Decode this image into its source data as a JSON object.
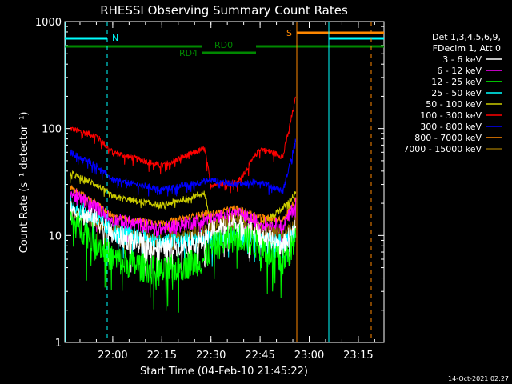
{
  "chart_data": {
    "type": "line",
    "title": "RHESSI Observing Summary Count Rates",
    "ylabel": "Count Rate (s⁻¹ detector⁻¹)",
    "xlabel": "Start Time (04-Feb-10 21:45:22)",
    "timestamp": "14-Oct-2021 02:27",
    "y_scale": "log",
    "ylim": [
      1,
      1000
    ],
    "y_ticks": [
      {
        "value": 1,
        "label": "1"
      },
      {
        "value": 10,
        "label": "10"
      },
      {
        "value": 100,
        "label": "100"
      },
      {
        "value": 1000,
        "label": "1000"
      }
    ],
    "x_ticks": [
      "22:00",
      "22:15",
      "22:30",
      "22:45",
      "23:00",
      "23:15"
    ],
    "legend_header": [
      "Det 1,3,4,5,6,9,",
      "FDecim 1, Att 0"
    ],
    "series": [
      {
        "name": "3 - 6 keV",
        "color": "#ffffff",
        "x": [
          "21:47",
          "21:55",
          "22:00",
          "22:15",
          "22:28",
          "22:30",
          "22:38",
          "22:45",
          "22:52",
          "22:56"
        ],
        "values": [
          17,
          14,
          10,
          7.5,
          9,
          11,
          13,
          10,
          8,
          12
        ]
      },
      {
        "name": "6 - 12 keV",
        "color": "#ff00ff",
        "x": [
          "21:47",
          "21:55",
          "22:00",
          "22:15",
          "22:28",
          "22:30",
          "22:38",
          "22:45",
          "22:52",
          "22:56"
        ],
        "values": [
          25,
          18,
          14,
          11.5,
          14,
          14,
          16,
          13,
          12,
          20
        ]
      },
      {
        "name": "12 - 25 keV",
        "color": "#00ff00",
        "x": [
          "21:47",
          "21:55",
          "22:00",
          "22:15",
          "22:28",
          "22:30",
          "22:38",
          "22:45",
          "22:52",
          "22:56"
        ],
        "values": [
          14,
          9,
          6,
          4.5,
          6,
          7.5,
          10,
          8,
          5.5,
          9
        ]
      },
      {
        "name": "25 - 50 keV",
        "color": "#00ffff",
        "x": [
          "21:47",
          "21:55",
          "22:00",
          "22:15",
          "22:28",
          "22:30",
          "22:38",
          "22:45",
          "22:52",
          "22:56"
        ],
        "values": [
          20,
          14,
          11,
          8.5,
          9.5,
          9,
          10,
          9,
          8.5,
          11
        ]
      },
      {
        "name": "50 - 100 keV",
        "color": "#cccc00",
        "x": [
          "21:47",
          "21:55",
          "22:00",
          "22:15",
          "22:28",
          "22:30",
          "22:38",
          "22:45",
          "22:52",
          "22:56"
        ],
        "values": [
          38,
          30,
          23,
          19,
          25,
          13,
          16,
          13,
          18,
          25
        ]
      },
      {
        "name": "100 - 300 keV",
        "color": "#ff0000",
        "x": [
          "21:47",
          "21:55",
          "22:00",
          "22:15",
          "22:28",
          "22:30",
          "22:38",
          "22:45",
          "22:52",
          "22:56"
        ],
        "values": [
          100,
          85,
          60,
          45,
          65,
          30,
          31,
          65,
          55,
          200
        ]
      },
      {
        "name": "300 - 800 keV",
        "color": "#0000ff",
        "x": [
          "21:47",
          "21:55",
          "22:00",
          "22:15",
          "22:28",
          "22:30",
          "22:38",
          "22:45",
          "22:52",
          "22:56"
        ],
        "values": [
          60,
          45,
          33,
          27,
          32,
          33,
          30,
          32,
          26,
          80
        ]
      },
      {
        "name": "800 - 7000 keV",
        "color": "#ff8800",
        "x": [
          "21:47",
          "21:55",
          "22:00",
          "22:15",
          "22:28",
          "22:30",
          "22:38",
          "22:45",
          "22:52",
          "22:56"
        ],
        "values": [
          28,
          20,
          15,
          13,
          16,
          16,
          18,
          15,
          14,
          22
        ]
      },
      {
        "name": "7000 - 15000 keV",
        "color": "#886600",
        "x": [
          "21:47",
          "21:55",
          "22:00",
          "22:15",
          "22:28",
          "22:30",
          "22:38",
          "22:45",
          "22:52",
          "22:56"
        ],
        "values": [
          18,
          13,
          11,
          9,
          11,
          12,
          14,
          11,
          10,
          14
        ]
      }
    ],
    "annotations": [
      {
        "label": "N",
        "color": "#00ffff"
      },
      {
        "label": "S",
        "color": "#ff8800"
      },
      {
        "label": "RD0",
        "color": "#008800"
      },
      {
        "label": "RD4",
        "color": "#008800"
      }
    ]
  }
}
